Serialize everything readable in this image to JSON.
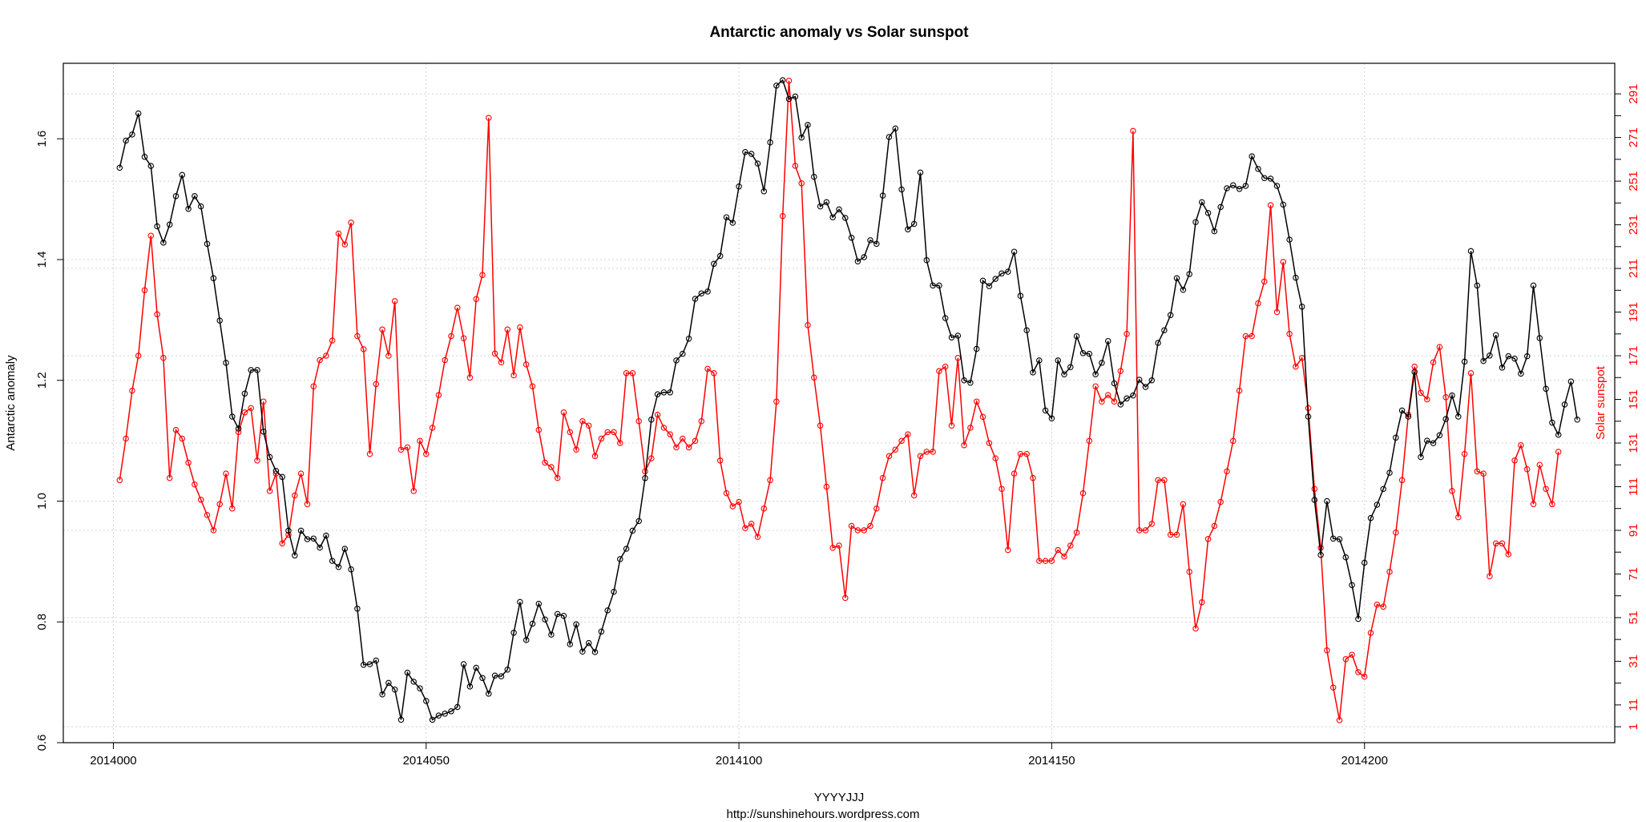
{
  "chart_data": {
    "type": "line",
    "title": "Antarctic anomaly  vs  Solar sunspot",
    "xlabel": "YYYYJJJ",
    "subtitle": "http://sunshinehours.wordpress.com",
    "ylabel_left": "Antarctic anomaly",
    "ylabel_right": "Solar sunspot",
    "xlim": [
      2013992,
      2014240
    ],
    "ylim_left": [
      0.6,
      1.725
    ],
    "ylim_right": [
      -6.3,
      305
    ],
    "x_ticks": [
      "2014000",
      "2014050",
      "2014100",
      "2014150",
      "2014200"
    ],
    "y_left_ticks": [
      "0.6",
      "0.8",
      "1.0",
      "1.2",
      "1.4",
      "1.6"
    ],
    "y_right_ticks": [
      "1",
      "11",
      "31",
      "51",
      "71",
      "91",
      "111",
      "131",
      "151",
      "171",
      "191",
      "211",
      "231",
      "251",
      "271",
      "291"
    ],
    "grid": true,
    "x_start": 2014001,
    "series": [
      {
        "name": "Antarctic anomaly",
        "color": "#000000",
        "axis": "left",
        "values": [
          1.552,
          1.597,
          1.607,
          1.642,
          1.57,
          1.555,
          1.455,
          1.428,
          1.458,
          1.505,
          1.54,
          1.484,
          1.505,
          1.488,
          1.426,
          1.369,
          1.299,
          1.229,
          1.14,
          1.12,
          1.178,
          1.217,
          1.217,
          1.115,
          1.073,
          1.05,
          1.04,
          0.951,
          0.91,
          0.951,
          0.937,
          0.938,
          0.923,
          0.943,
          0.901,
          0.891,
          0.921,
          0.887,
          0.822,
          0.729,
          0.73,
          0.736,
          0.68,
          0.699,
          0.688,
          0.638,
          0.716,
          0.701,
          0.69,
          0.669,
          0.638,
          0.645,
          0.648,
          0.652,
          0.659,
          0.73,
          0.693,
          0.724,
          0.707,
          0.681,
          0.711,
          0.71,
          0.721,
          0.782,
          0.833,
          0.77,
          0.797,
          0.83,
          0.804,
          0.779,
          0.813,
          0.81,
          0.763,
          0.796,
          0.751,
          0.765,
          0.75,
          0.784,
          0.819,
          0.85,
          0.904,
          0.921,
          0.951,
          0.967,
          1.038,
          1.135,
          1.177,
          1.18,
          1.18,
          1.233,
          1.244,
          1.269,
          1.335,
          1.344,
          1.347,
          1.393,
          1.406,
          1.47,
          1.461,
          1.521,
          1.578,
          1.575,
          1.559,
          1.513,
          1.594,
          1.688,
          1.697,
          1.666,
          1.67,
          1.602,
          1.623,
          1.537,
          1.488,
          1.495,
          1.47,
          1.483,
          1.469,
          1.436,
          1.397,
          1.404,
          1.432,
          1.426,
          1.506,
          1.603,
          1.617,
          1.516,
          1.45,
          1.459,
          1.544,
          1.399,
          1.357,
          1.357,
          1.303,
          1.271,
          1.274,
          1.2,
          1.196,
          1.252,
          1.365,
          1.356,
          1.368,
          1.377,
          1.38,
          1.413,
          1.34,
          1.283,
          1.213,
          1.233,
          1.15,
          1.137,
          1.233,
          1.21,
          1.222,
          1.273,
          1.245,
          1.244,
          1.21,
          1.229,
          1.265,
          1.195,
          1.16,
          1.17,
          1.175,
          1.201,
          1.189,
          1.2,
          1.262,
          1.283,
          1.308,
          1.369,
          1.35,
          1.376,
          1.462,
          1.495,
          1.477,
          1.447,
          1.487,
          1.518,
          1.523,
          1.517,
          1.522,
          1.571,
          1.55,
          1.535,
          1.534,
          1.522,
          1.491,
          1.433,
          1.37,
          1.322,
          1.14,
          1.002,
          0.911,
          1.0,
          0.938,
          0.937,
          0.907,
          0.861,
          0.805,
          0.898,
          0.972,
          0.994,
          1.02,
          1.047,
          1.105,
          1.15,
          1.14,
          1.214,
          1.073,
          1.1,
          1.096,
          1.109,
          1.136,
          1.175,
          1.14,
          1.231,
          1.414,
          1.357,
          1.232,
          1.241,
          1.275,
          1.221,
          1.24,
          1.236,
          1.211,
          1.24,
          1.357,
          1.27,
          1.186,
          1.13,
          1.11,
          1.16,
          1.198,
          1.135
        ]
      },
      {
        "name": "Solar sunspot",
        "color": "#ff0000",
        "axis": "right",
        "values": [
          114,
          133,
          155,
          171,
          201,
          226,
          190,
          170,
          115,
          137,
          133,
          122,
          112,
          105,
          98,
          91,
          103,
          117,
          101,
          136,
          145,
          147,
          123,
          150,
          109,
          117,
          85,
          89,
          107,
          117,
          103,
          157,
          169,
          171,
          178,
          227,
          222,
          232,
          180,
          174,
          126,
          158,
          183,
          171,
          196,
          128,
          129,
          109,
          132,
          126,
          138,
          153,
          169,
          180,
          193,
          179,
          161,
          197,
          208,
          280,
          172,
          168,
          183,
          162,
          184,
          167,
          157,
          137,
          122,
          120,
          115,
          145,
          136,
          128,
          141,
          139,
          125,
          133,
          136,
          136,
          131,
          163,
          163,
          141,
          118,
          124,
          144,
          138,
          135,
          129,
          133,
          129,
          132,
          141,
          165,
          163,
          123,
          108,
          102,
          104,
          92,
          94,
          88,
          101,
          114,
          150,
          235,
          297,
          258,
          250,
          185,
          161,
          139,
          111,
          83,
          84,
          60,
          93,
          91,
          91,
          93,
          101,
          115,
          125,
          128,
          132,
          135,
          107,
          125,
          127,
          127,
          164,
          166,
          139,
          170,
          130,
          138,
          150,
          143,
          131,
          124,
          110,
          82,
          117,
          126,
          126,
          115,
          77,
          77,
          77,
          82,
          79,
          84,
          90,
          108,
          132,
          157,
          150,
          153,
          150,
          164,
          181,
          274,
          91,
          91,
          94,
          114,
          114,
          89,
          89,
          103,
          72,
          46,
          58,
          87,
          93,
          104,
          118,
          132,
          155,
          180,
          180,
          195,
          205,
          240,
          191,
          214,
          181,
          166,
          170,
          147,
          110,
          83,
          36,
          19,
          4,
          32,
          34,
          26,
          24,
          44,
          57,
          56,
          72,
          90,
          114,
          144,
          166,
          154,
          151,
          168,
          175,
          152,
          109,
          97,
          126,
          163,
          118,
          117,
          70,
          85,
          85,
          80,
          123,
          130,
          119,
          103,
          121,
          110,
          103,
          127
        ]
      }
    ]
  }
}
